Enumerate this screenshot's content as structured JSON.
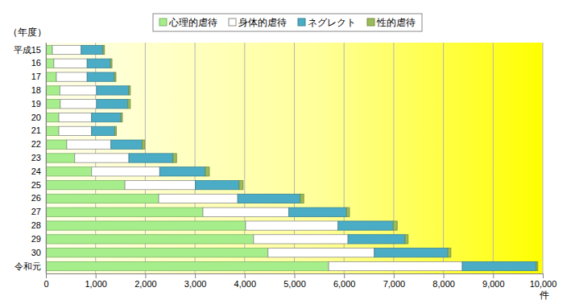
{
  "chart_data": {
    "type": "bar",
    "orientation": "horizontal",
    "stacked": true,
    "grid": true,
    "legend": "top",
    "y_label": "（年度）",
    "x_label": "件",
    "categories": [
      "平成15",
      "16",
      "17",
      "18",
      "19",
      "20",
      "21",
      "22",
      "23",
      "24",
      "25",
      "26",
      "27",
      "28",
      "29",
      "30",
      "令和元"
    ],
    "series": [
      {
        "name": "心理的虐待",
        "color": "#a6ee8c",
        "values": [
          130,
          160,
          210,
          280,
          290,
          260,
          260,
          420,
          580,
          920,
          1590,
          2270,
          3160,
          4020,
          4180,
          4470,
          5690
        ]
      },
      {
        "name": "身体的虐待",
        "color": "#ffffff",
        "values": [
          580,
          670,
          620,
          740,
          730,
          660,
          660,
          890,
          1090,
          1370,
          1420,
          1590,
          1730,
          1860,
          1900,
          2140,
          2690
        ]
      },
      {
        "name": "ネグレクト",
        "color": "#4bacc6",
        "values": [
          440,
          470,
          550,
          650,
          630,
          590,
          470,
          630,
          890,
          920,
          880,
          1260,
          1160,
          1110,
          1150,
          1480,
          1490
        ]
      },
      {
        "name": "性的虐待",
        "color": "#9bbb59",
        "values": [
          30,
          30,
          30,
          30,
          50,
          30,
          30,
          50,
          70,
          80,
          80,
          70,
          60,
          80,
          60,
          60,
          30
        ]
      }
    ],
    "xlim": [
      0,
      10000
    ],
    "xticks": [
      0,
      {
        "value": 1000,
        "label": "1,000"
      },
      {
        "value": 2000,
        "label": "2,000"
      },
      {
        "value": 3000,
        "label": "3,000"
      },
      {
        "value": 4000,
        "label": "4,000"
      },
      {
        "value": 5000,
        "label": "5,000"
      },
      {
        "value": 6000,
        "label": "6,000"
      },
      {
        "value": 7000,
        "label": "7,000"
      },
      {
        "value": 8000,
        "label": "8,000"
      },
      {
        "value": 9000,
        "label": "9,000"
      },
      {
        "value": 10000,
        "label": "10,000"
      }
    ]
  }
}
